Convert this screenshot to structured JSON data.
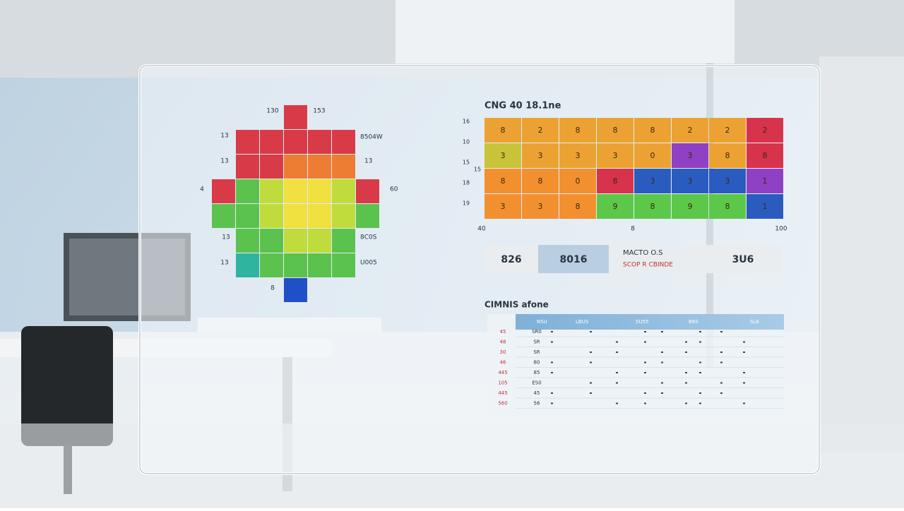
{
  "heatmap": {
    "top_labels": [
      "130",
      "153"
    ],
    "left_labels": [
      "13",
      "13",
      "4",
      "13",
      "13",
      "8"
    ],
    "right_labels": [
      "8504W",
      "13",
      "60",
      "8C0S",
      "U005"
    ]
  },
  "grid": {
    "title": "CNG 40 18.1ne",
    "row_labels": [
      "16",
      "10",
      "15",
      "18",
      "19"
    ],
    "side_label": "15",
    "cells": [
      [
        "8",
        "2",
        "8",
        "8",
        "8",
        "2",
        "2",
        "2"
      ],
      [
        "3",
        "3",
        "3",
        "3",
        "0",
        "3",
        "8",
        "8"
      ],
      [
        "8",
        "8",
        "0",
        "8",
        "3",
        "3",
        "3",
        "1"
      ],
      [
        "3",
        "3",
        "8",
        "9",
        "8",
        "9",
        "8",
        "1"
      ]
    ],
    "x_labels": [
      "40",
      "8",
      "100"
    ]
  },
  "stats": {
    "first": "826",
    "second": "8016",
    "third_title": "MACTO O.S",
    "third_sub": "SCOP R CBINDE",
    "fourth": "3U6"
  },
  "table": {
    "title": "CIMNIS afone",
    "header": [
      "NSU",
      "LBUS",
      "5U55",
      "B6S",
      "SL6"
    ],
    "row_labels": [
      "45",
      "48",
      "30",
      "46",
      "445",
      "105",
      "445",
      "560"
    ],
    "row_codes": [
      "SR0",
      "SR",
      "SR",
      "80",
      "85",
      "ES0",
      "45",
      "56"
    ]
  }
}
